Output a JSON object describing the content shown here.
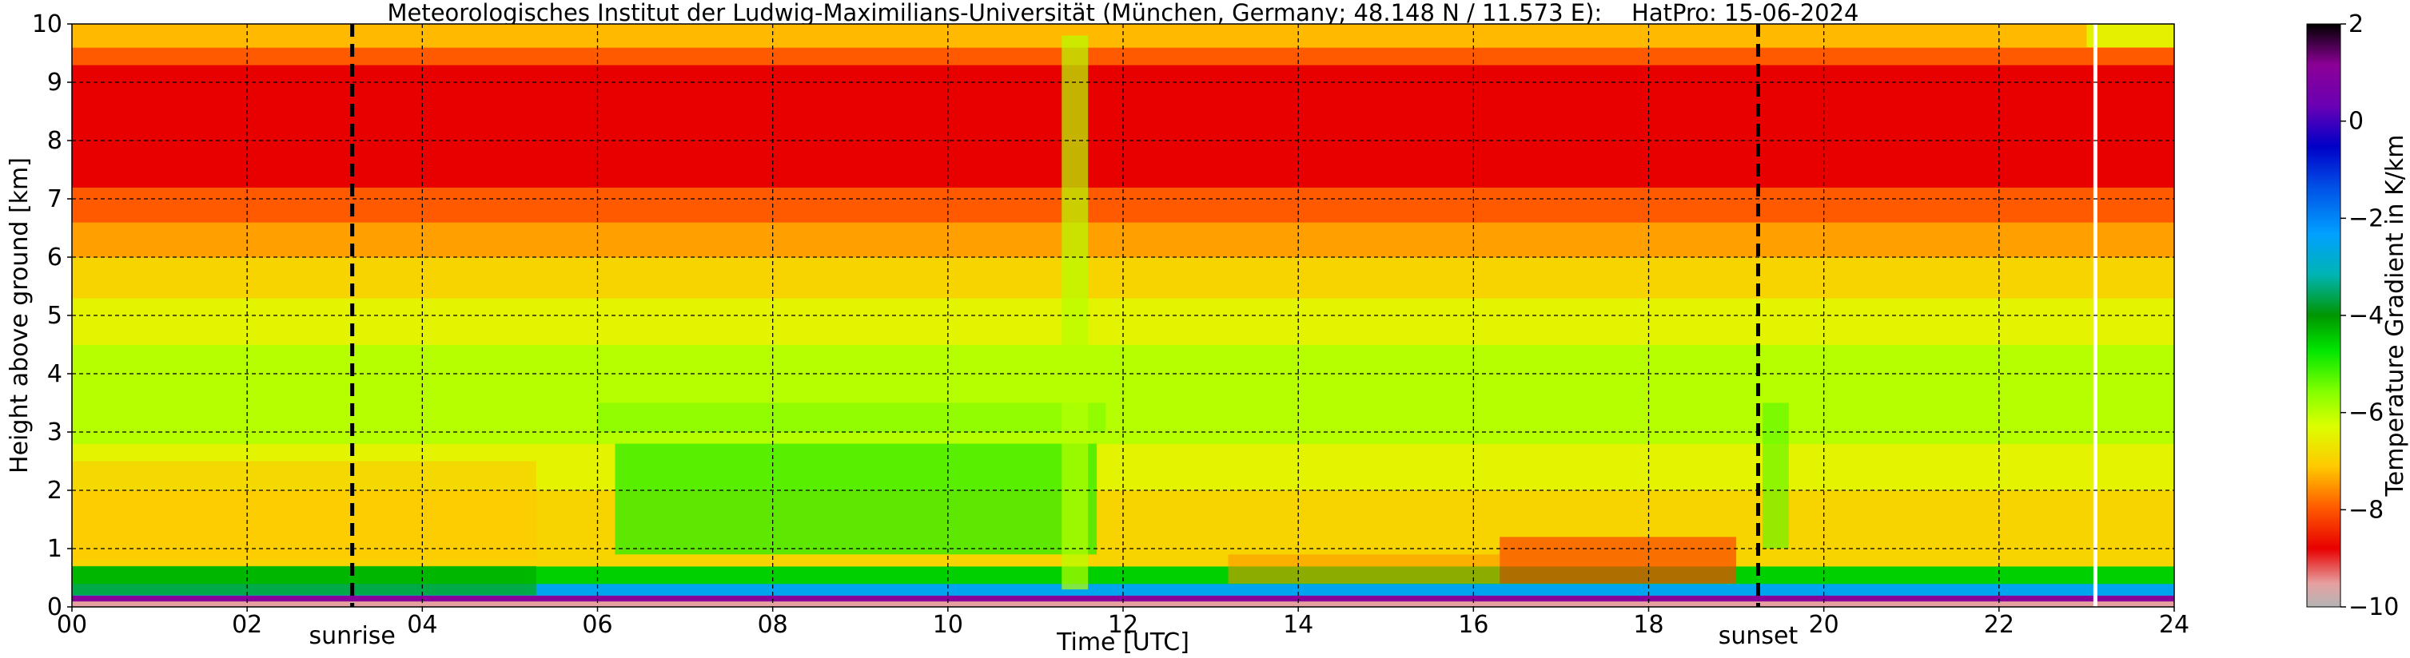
{
  "chart_data": {
    "type": "heatmap",
    "title": "Meteorologisches Institut der Ludwig-Maximilians-Universität (München, Germany; 48.148 N / 11.573 E):    HatPro: 15-06-2024",
    "xlabel": "Time [UTC]",
    "ylabel": "Height above ground [km]",
    "colorbar_label": "Temperature Gradient in K/km",
    "xlim": [
      0,
      24
    ],
    "ylim": [
      0,
      10
    ],
    "clim": [
      -10,
      2
    ],
    "x_ticks": [
      0,
      2,
      4,
      6,
      8,
      10,
      12,
      14,
      16,
      18,
      20,
      22,
      24
    ],
    "x_tick_labels": [
      "00",
      "02",
      "04",
      "06",
      "08",
      "10",
      "12",
      "14",
      "16",
      "18",
      "20",
      "22",
      "24"
    ],
    "y_ticks": [
      0,
      1,
      2,
      3,
      4,
      5,
      6,
      7,
      8,
      9,
      10
    ],
    "y_tick_labels": [
      "0",
      "1",
      "2",
      "3",
      "4",
      "5",
      "6",
      "7",
      "8",
      "9",
      "10"
    ],
    "colorbar_ticks": [
      2,
      0,
      -2,
      -4,
      -6,
      -8,
      -10
    ],
    "colorbar_tick_labels": [
      "2",
      "0",
      "−2",
      "−4",
      "−6",
      "−8",
      "−10"
    ],
    "grid": true,
    "annotations": [
      {
        "text": "sunrise",
        "x": 3.2
      },
      {
        "text": "sunset",
        "x": 19.25
      }
    ],
    "missing_data_x": 23.1,
    "height_bands_km": [
      0,
      0.1,
      0.2,
      0.4,
      0.7,
      1.2,
      2.0,
      2.8,
      3.6,
      4.5,
      5.3,
      6.0,
      6.6,
      7.2,
      9.3,
      9.6,
      10.0
    ],
    "gradient_K_per_km": [
      -9.5,
      1.0,
      -2.5,
      -4.5,
      -7.0,
      -7.0,
      -6.5,
      -6.0,
      -6.0,
      -6.5,
      -7.0,
      -7.5,
      -8.0,
      -8.8,
      -8.0,
      -7.3
    ],
    "colors": {
      "background": "#ffffff",
      "axis": "#000000",
      "grid": "#000000",
      "marker": "#000000",
      "missing": "#ffffff"
    }
  }
}
